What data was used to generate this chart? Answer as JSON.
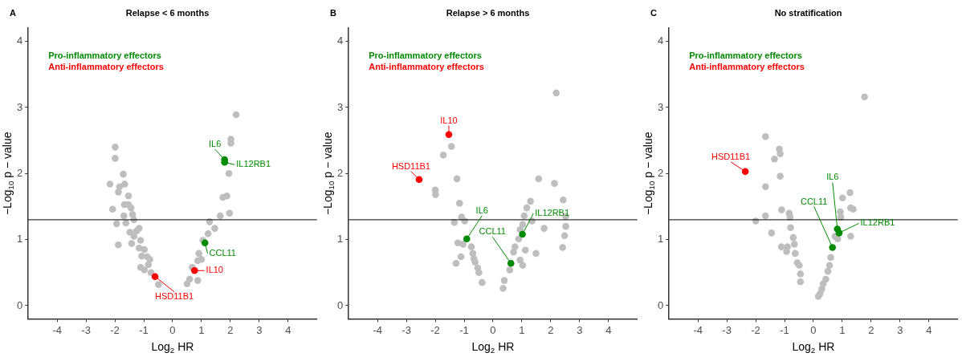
{
  "chart_data": [
    {
      "type": "scatter",
      "title": "Relapse < 6 months",
      "annotations": [
        "A"
      ],
      "xlabel": "Log$_{2}$ HR",
      "ylabel": "−Log$_{10}$ p − value",
      "xlim": [
        -5,
        5
      ],
      "xticks": [
        -4,
        -3,
        -2,
        -1,
        0,
        1,
        2,
        3,
        4
      ],
      "ylim": [
        -0.2,
        4.2
      ],
      "yticks": [
        0,
        1,
        2,
        3,
        4
      ],
      "grid": false,
      "legend": "top left",
      "marker": "circle",
      "ref_lines": [
        {
          "axis": "y",
          "value": 1.3
        }
      ],
      "series": [
        {
          "color": "#bebebe",
          "x": [
            -2.17,
            -1.99,
            -1.99,
            -1.71,
            -2.08,
            -1.94,
            -1.88,
            -1.84,
            -1.88,
            -1.66,
            -1.53,
            -1.67,
            -1.53,
            -1.44,
            -1.69,
            -1.39,
            -1.62,
            -1.34,
            -1.48,
            -1.25,
            -1.16,
            -1.42,
            -1.11,
            -1.16,
            -0.98,
            -1.07,
            -0.88,
            -1.11,
            -0.98,
            -0.84,
            -0.75,
            -0.49,
            -1.34,
            -0.79,
            0.5,
            0.59,
            0.87,
            0.68,
            0.87,
            1.0,
            0.91,
            1.05,
            1.23,
            1.46,
            1.28,
            1.65,
            1.97,
            1.88,
            1.74,
            1.95,
            2.02,
            2.02,
            2.2
          ],
          "values": [
            1.84,
            2.4,
            2.23,
            1.99,
            1.46,
            1.24,
            0.92,
            1.8,
            1.72,
            1.84,
            1.66,
            1.53,
            1.53,
            1.48,
            1.36,
            1.38,
            1.25,
            1.3,
            1.11,
            1.13,
            1.17,
            0.94,
            0.99,
            0.87,
            0.85,
            0.75,
            0.74,
            0.58,
            0.54,
            0.62,
            0.5,
            0.32,
            1.05,
            0.7,
            0.33,
            0.4,
            0.38,
            0.58,
            0.68,
            0.7,
            0.79,
            0.99,
            1.09,
            1.17,
            1.27,
            1.36,
            1.4,
            1.66,
            1.64,
            2.0,
            2.52,
            2.46,
            2.89
          ]
        },
        {
          "name": "Pro-inflammatory effectors",
          "color": "#008b00",
          "x": [
            1.8,
            1.8,
            1.12
          ],
          "values": [
            2.21,
            2.17,
            0.95
          ],
          "value_labels": [
            "IL6",
            "IL12RB1",
            "CCL11"
          ]
        },
        {
          "name": "Anti-inflammatory effectors",
          "color": "#ff0000",
          "x": [
            -0.61,
            0.76
          ],
          "values": [
            0.44,
            0.53
          ],
          "value_labels": [
            "HSD11B1",
            "IL10"
          ]
        }
      ]
    },
    {
      "type": "scatter",
      "title": "Relapse > 6 months",
      "annotations": [
        "B"
      ],
      "xlabel": "Log$_{2}$ HR",
      "ylabel": "−Log$_{10}$ p − value",
      "xlim": [
        -5,
        5
      ],
      "xticks": [
        -4,
        -3,
        -2,
        -1,
        0,
        1,
        2,
        3,
        4
      ],
      "ylim": [
        -0.2,
        4.2
      ],
      "yticks": [
        0,
        1,
        2,
        3,
        4
      ],
      "grid": false,
      "legend": "top left",
      "marker": "circle",
      "ref_lines": [
        {
          "axis": "y",
          "value": 1.3
        }
      ],
      "series": [
        {
          "color": "#bebebe",
          "x": [
            2.19,
            -1.44,
            -1.72,
            -1.25,
            -2.0,
            -1.99,
            -1.16,
            -1.09,
            -0.98,
            -1.34,
            -1.22,
            -1.04,
            -0.75,
            -0.7,
            -0.66,
            -1.11,
            -0.62,
            -0.53,
            -0.49,
            -1.28,
            -0.38,
            0.35,
            0.39,
            0.58,
            0.71,
            0.89,
            0.94,
            1.03,
            1.08,
            1.17,
            1.3,
            1.35,
            0.94,
            1.03,
            1.12,
            1.49,
            1.77,
            1.58,
            2.13,
            2.43,
            2.52,
            2.52,
            2.48,
            2.41,
            0.76
          ],
          "values": [
            3.22,
            2.41,
            2.28,
            1.92,
            1.75,
            1.68,
            1.55,
            1.34,
            1.28,
            1.26,
            0.95,
            0.93,
            0.89,
            0.79,
            0.71,
            0.74,
            0.66,
            0.57,
            0.5,
            0.64,
            0.35,
            0.26,
            0.38,
            0.54,
            0.81,
            1.01,
            1.15,
            1.23,
            1.36,
            1.48,
            1.58,
            1.28,
            0.69,
            0.61,
            0.84,
            0.79,
            1.17,
            1.92,
            1.85,
            1.6,
            1.35,
            1.2,
            1.06,
            0.88,
            0.89
          ]
        },
        {
          "name": "Pro-inflammatory effectors",
          "color": "#008b00",
          "x": [
            -0.91,
            1.02,
            0.62
          ],
          "values": [
            1.01,
            1.08,
            0.64
          ],
          "value_labels": [
            "IL6",
            "IL12RB1",
            "CCL11"
          ]
        },
        {
          "name": "Anti-inflammatory effectors",
          "color": "#ff0000",
          "x": [
            -2.56,
            -1.53
          ],
          "values": [
            1.91,
            2.59
          ],
          "value_labels": [
            "HSD11B1",
            "IL10"
          ]
        }
      ]
    },
    {
      "type": "scatter",
      "title": "No stratification",
      "annotations": [
        "C"
      ],
      "xlabel": "Log$_{2}$ HR",
      "ylabel": "−Log$_{10}$ p − value",
      "xlim": [
        -5,
        5
      ],
      "xticks": [
        -4,
        -3,
        -2,
        -1,
        0,
        1,
        2,
        3,
        4
      ],
      "ylim": [
        -0.2,
        4.2
      ],
      "yticks": [
        0,
        1,
        2,
        3,
        4
      ],
      "grid": false,
      "legend": "top left",
      "marker": "circle",
      "ref_lines": [
        {
          "axis": "y",
          "value": 1.3
        }
      ],
      "series": [
        {
          "color": "#bebebe",
          "x": [
            1.77,
            -1.66,
            -1.18,
            -1.15,
            -1.35,
            -1.15,
            -1.66,
            -1.1,
            -0.84,
            -0.81,
            -1.66,
            -2.0,
            -0.79,
            -1.45,
            -0.7,
            -0.66,
            -1.11,
            -0.9,
            -0.93,
            -0.63,
            -0.56,
            -0.49,
            -0.45,
            -0.45,
            1.01,
            1.27,
            1.29,
            1.38,
            0.93,
            0.95,
            1.29,
            0.84,
            0.75,
            0.6,
            0.56,
            0.5,
            0.43,
            0.34,
            0.29,
            0.23,
            0.17
          ],
          "values": [
            3.16,
            2.56,
            2.37,
            2.3,
            2.22,
            1.96,
            1.8,
            1.45,
            1.4,
            1.34,
            1.36,
            1.28,
            1.18,
            1.1,
            1.03,
            0.93,
            0.89,
            0.89,
            0.82,
            0.79,
            0.65,
            0.61,
            0.48,
            0.36,
            1.63,
            1.71,
            1.48,
            1.46,
            1.42,
            1.34,
            1.05,
            1.01,
            1.05,
            0.73,
            0.61,
            0.52,
            0.4,
            0.33,
            0.25,
            0.18,
            0.14
          ]
        },
        {
          "name": "Pro-inflammatory effectors",
          "color": "#008b00",
          "x": [
            0.83,
            0.89,
            0.66
          ],
          "values": [
            1.16,
            1.1,
            0.88
          ],
          "value_labels": [
            "IL6",
            "IL12RB1",
            "CCL11"
          ]
        },
        {
          "name": "Anti-inflammatory effectors",
          "color": "#ff0000",
          "x": [
            -2.36
          ],
          "values": [
            2.03
          ],
          "value_labels": [
            "HSD11B1"
          ]
        }
      ]
    }
  ]
}
